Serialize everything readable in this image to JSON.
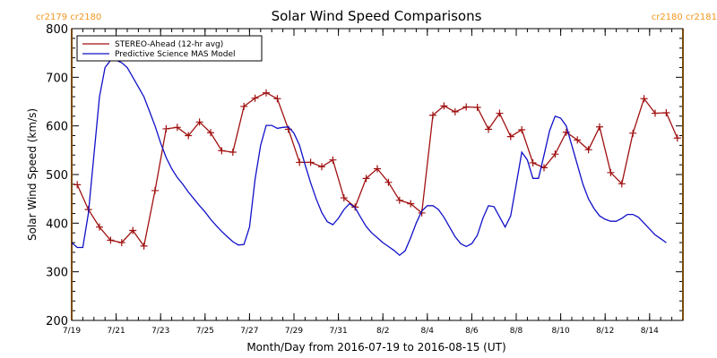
{
  "chart_data": {
    "type": "line",
    "title": "Solar Wind Speed Comparisons",
    "xlabel": "Month/Day from 2016-07-19 to 2016-08-15 (UT)",
    "ylabel": "Solar Wind Speed (km/s)",
    "ylim": [
      200,
      800
    ],
    "yticks": [
      200,
      300,
      400,
      500,
      600,
      700,
      800
    ],
    "xlim": [
      "2016-07-19",
      "2016-08-15 12:00"
    ],
    "xticks": [
      {
        "date": "2016-07-19",
        "label": "7/19"
      },
      {
        "date": "2016-07-21",
        "label": "7/21"
      },
      {
        "date": "2016-07-23",
        "label": "7/23"
      },
      {
        "date": "2016-07-25",
        "label": "7/25"
      },
      {
        "date": "2016-07-27",
        "label": "7/27"
      },
      {
        "date": "2016-07-29",
        "label": "7/29"
      },
      {
        "date": "2016-07-31",
        "label": "7/31"
      },
      {
        "date": "2016-08-02",
        "label": "8/2"
      },
      {
        "date": "2016-08-04",
        "label": "8/4"
      },
      {
        "date": "2016-08-06",
        "label": "8/6"
      },
      {
        "date": "2016-08-08",
        "label": "8/8"
      },
      {
        "date": "2016-08-10",
        "label": "8/10"
      },
      {
        "date": "2016-08-12",
        "label": "8/12"
      },
      {
        "date": "2016-08-14",
        "label": "8/14"
      }
    ],
    "grid": false,
    "legend_position": "top-left",
    "carrington_markers": [
      {
        "date": "2016-07-19",
        "label": "cr2179 cr2180",
        "side": "left"
      },
      {
        "date": "2016-08-15 12:00",
        "label": "cr2180 cr2181",
        "side": "right"
      }
    ],
    "series": [
      {
        "name": "STEREO-Ahead (12-hr avg)",
        "color": "#a01010",
        "marker": "plus",
        "points": [
          [
            "2016-07-19 06:00",
            479
          ],
          [
            "2016-07-19 18:00",
            428
          ],
          [
            "2016-07-20 06:00",
            392
          ],
          [
            "2016-07-20 18:00",
            365
          ],
          [
            "2016-07-21 06:00",
            360
          ],
          [
            "2016-07-21 18:00",
            385
          ],
          [
            "2016-07-22 06:00",
            353
          ],
          [
            "2016-07-22 18:00",
            467
          ],
          [
            "2016-07-23 06:00",
            594
          ],
          [
            "2016-07-23 18:00",
            597
          ],
          [
            "2016-07-24 06:00",
            580
          ],
          [
            "2016-07-24 18:00",
            608
          ],
          [
            "2016-07-25 06:00",
            586
          ],
          [
            "2016-07-25 18:00",
            549
          ],
          [
            "2016-07-26 06:00",
            546
          ],
          [
            "2016-07-26 18:00",
            640
          ],
          [
            "2016-07-27 06:00",
            657
          ],
          [
            "2016-07-27 18:00",
            668
          ],
          [
            "2016-07-28 06:00",
            656
          ],
          [
            "2016-07-28 18:00",
            593
          ],
          [
            "2016-07-29 06:00",
            525
          ],
          [
            "2016-07-29 18:00",
            525
          ],
          [
            "2016-07-30 06:00",
            516
          ],
          [
            "2016-07-30 18:00",
            530
          ],
          [
            "2016-07-31 06:00",
            452
          ],
          [
            "2016-07-31 18:00",
            433
          ],
          [
            "2016-08-01 06:00",
            492
          ],
          [
            "2016-08-01 18:00",
            512
          ],
          [
            "2016-08-02 06:00",
            484
          ],
          [
            "2016-08-02 18:00",
            447
          ],
          [
            "2016-08-03 06:00",
            440
          ],
          [
            "2016-08-03 18:00",
            421
          ],
          [
            "2016-08-04 06:00",
            622
          ],
          [
            "2016-08-04 18:00",
            641
          ],
          [
            "2016-08-05 06:00",
            629
          ],
          [
            "2016-08-05 18:00",
            639
          ],
          [
            "2016-08-06 06:00",
            638
          ],
          [
            "2016-08-06 18:00",
            593
          ],
          [
            "2016-08-07 06:00",
            626
          ],
          [
            "2016-08-07 18:00",
            578
          ],
          [
            "2016-08-08 06:00",
            592
          ],
          [
            "2016-08-08 18:00",
            524
          ],
          [
            "2016-08-09 06:00",
            514
          ],
          [
            "2016-08-09 18:00",
            542
          ],
          [
            "2016-08-10 06:00",
            587
          ],
          [
            "2016-08-10 18:00",
            571
          ],
          [
            "2016-08-11 06:00",
            551
          ],
          [
            "2016-08-11 18:00",
            598
          ],
          [
            "2016-08-12 06:00",
            504
          ],
          [
            "2016-08-12 18:00",
            481
          ],
          [
            "2016-08-13 06:00",
            585
          ],
          [
            "2016-08-13 18:00",
            656
          ],
          [
            "2016-08-14 06:00",
            626
          ],
          [
            "2016-08-14 18:00",
            627
          ],
          [
            "2016-08-15 06:00",
            575
          ]
        ]
      },
      {
        "name": "Predictive Science MAS Model",
        "color": "#1010c8",
        "marker": "none",
        "points": [
          [
            "2016-07-19 00:00",
            360
          ],
          [
            "2016-07-19 06:00",
            350
          ],
          [
            "2016-07-19 12:00",
            350
          ],
          [
            "2016-07-19 18:00",
            420
          ],
          [
            "2016-07-20 00:00",
            540
          ],
          [
            "2016-07-20 06:00",
            660
          ],
          [
            "2016-07-20 12:00",
            720
          ],
          [
            "2016-07-20 18:00",
            735
          ],
          [
            "2016-07-21 00:00",
            735
          ],
          [
            "2016-07-21 06:00",
            730
          ],
          [
            "2016-07-21 12:00",
            720
          ],
          [
            "2016-07-21 18:00",
            700
          ],
          [
            "2016-07-22 00:00",
            680
          ],
          [
            "2016-07-22 06:00",
            660
          ],
          [
            "2016-07-22 12:00",
            630
          ],
          [
            "2016-07-22 18:00",
            600
          ],
          [
            "2016-07-23 00:00",
            565
          ],
          [
            "2016-07-23 06:00",
            535
          ],
          [
            "2016-07-23 12:00",
            512
          ],
          [
            "2016-07-23 18:00",
            494
          ],
          [
            "2016-07-24 00:00",
            480
          ],
          [
            "2016-07-24 06:00",
            464
          ],
          [
            "2016-07-24 12:00",
            450
          ],
          [
            "2016-07-24 18:00",
            436
          ],
          [
            "2016-07-25 00:00",
            423
          ],
          [
            "2016-07-25 06:00",
            408
          ],
          [
            "2016-07-25 12:00",
            395
          ],
          [
            "2016-07-25 18:00",
            383
          ],
          [
            "2016-07-26 00:00",
            372
          ],
          [
            "2016-07-26 06:00",
            362
          ],
          [
            "2016-07-26 12:00",
            355
          ],
          [
            "2016-07-26 18:00",
            356
          ],
          [
            "2016-07-27 00:00",
            392
          ],
          [
            "2016-07-27 06:00",
            490
          ],
          [
            "2016-07-27 12:00",
            560
          ],
          [
            "2016-07-27 18:00",
            601
          ],
          [
            "2016-07-28 00:00",
            601
          ],
          [
            "2016-07-28 06:00",
            595
          ],
          [
            "2016-07-28 12:00",
            597
          ],
          [
            "2016-07-28 18:00",
            598
          ],
          [
            "2016-07-29 00:00",
            585
          ],
          [
            "2016-07-29 06:00",
            560
          ],
          [
            "2016-07-29 12:00",
            520
          ],
          [
            "2016-07-29 18:00",
            483
          ],
          [
            "2016-07-30 00:00",
            450
          ],
          [
            "2016-07-30 06:00",
            422
          ],
          [
            "2016-07-30 12:00",
            403
          ],
          [
            "2016-07-30 18:00",
            397
          ],
          [
            "2016-07-31 00:00",
            410
          ],
          [
            "2016-07-31 06:00",
            428
          ],
          [
            "2016-07-31 12:00",
            440
          ],
          [
            "2016-07-31 18:00",
            432
          ],
          [
            "2016-08-01 00:00",
            412
          ],
          [
            "2016-08-01 06:00",
            393
          ],
          [
            "2016-08-01 12:00",
            380
          ],
          [
            "2016-08-01 18:00",
            370
          ],
          [
            "2016-08-02 00:00",
            360
          ],
          [
            "2016-08-02 06:00",
            352
          ],
          [
            "2016-08-02 12:00",
            344
          ],
          [
            "2016-08-02 18:00",
            334
          ],
          [
            "2016-08-03 00:00",
            343
          ],
          [
            "2016-08-03 06:00",
            370
          ],
          [
            "2016-08-03 12:00",
            400
          ],
          [
            "2016-08-03 18:00",
            425
          ],
          [
            "2016-08-04 00:00",
            436
          ],
          [
            "2016-08-04 06:00",
            436
          ],
          [
            "2016-08-04 12:00",
            428
          ],
          [
            "2016-08-04 18:00",
            412
          ],
          [
            "2016-08-05 00:00",
            392
          ],
          [
            "2016-08-05 06:00",
            372
          ],
          [
            "2016-08-05 12:00",
            358
          ],
          [
            "2016-08-05 18:00",
            352
          ],
          [
            "2016-08-06 00:00",
            358
          ],
          [
            "2016-08-06 06:00",
            375
          ],
          [
            "2016-08-06 12:00",
            410
          ],
          [
            "2016-08-06 18:00",
            436
          ],
          [
            "2016-08-07 00:00",
            434
          ],
          [
            "2016-08-07 06:00",
            413
          ],
          [
            "2016-08-07 12:00",
            392
          ],
          [
            "2016-08-07 18:00",
            415
          ],
          [
            "2016-08-08 00:00",
            480
          ],
          [
            "2016-08-08 06:00",
            546
          ],
          [
            "2016-08-08 12:00",
            530
          ],
          [
            "2016-08-08 18:00",
            492
          ],
          [
            "2016-08-09 00:00",
            492
          ],
          [
            "2016-08-09 06:00",
            540
          ],
          [
            "2016-08-09 12:00",
            590
          ],
          [
            "2016-08-09 18:00",
            620
          ],
          [
            "2016-08-10 00:00",
            616
          ],
          [
            "2016-08-10 06:00",
            600
          ],
          [
            "2016-08-10 12:00",
            560
          ],
          [
            "2016-08-10 18:00",
            520
          ],
          [
            "2016-08-11 00:00",
            480
          ],
          [
            "2016-08-11 06:00",
            450
          ],
          [
            "2016-08-11 12:00",
            430
          ],
          [
            "2016-08-11 18:00",
            415
          ],
          [
            "2016-08-12 00:00",
            408
          ],
          [
            "2016-08-12 06:00",
            404
          ],
          [
            "2016-08-12 12:00",
            404
          ],
          [
            "2016-08-12 18:00",
            410
          ],
          [
            "2016-08-13 00:00",
            418
          ],
          [
            "2016-08-13 06:00",
            418
          ],
          [
            "2016-08-13 12:00",
            412
          ],
          [
            "2016-08-13 18:00",
            400
          ],
          [
            "2016-08-14 00:00",
            388
          ],
          [
            "2016-08-14 06:00",
            376
          ],
          [
            "2016-08-14 12:00",
            368
          ],
          [
            "2016-08-14 18:00",
            360
          ]
        ]
      }
    ]
  }
}
